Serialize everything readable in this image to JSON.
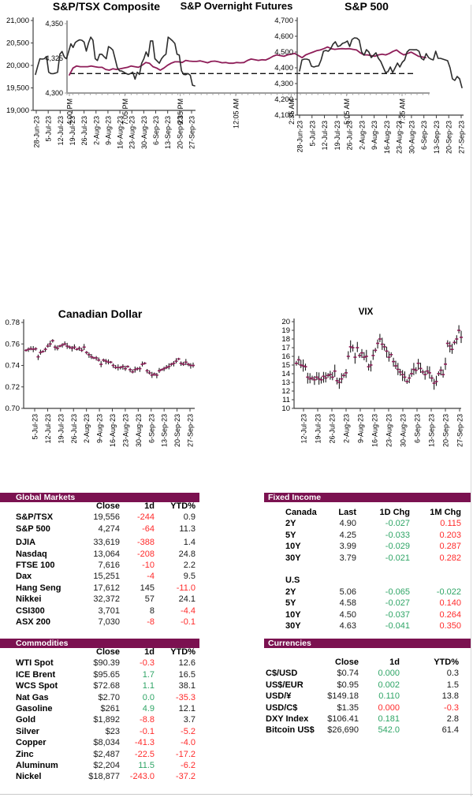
{
  "colors": {
    "accent": "#7B1150",
    "line": "#8E1D58",
    "red": "#FF2B2B",
    "green": "#2FA566",
    "axis_gray": "#9e9e9e",
    "axis_dark": "#3f3f3f"
  },
  "chart_data": [
    {
      "type": "line",
      "title": "S&P Overnight Futures",
      "ylim": [
        4300,
        4350
      ],
      "y_ticks": [
        "4,300",
        "4,325",
        "4,350"
      ],
      "x_ticks": [
        "4:00 PM",
        "7:05 PM",
        "9:35 PM",
        "12:05 AM",
        "2:35 AM",
        "5:05 AM",
        "7:35 AM"
      ],
      "ref_line": 4314,
      "values": [
        4313,
        4318,
        4319.5,
        4319,
        4319,
        4319,
        4319.5,
        4319,
        4318.5,
        4318.5,
        4317,
        4316.5,
        4317.5,
        4317,
        4317.5,
        4318,
        4318.5,
        4319.5,
        4319,
        4318.5,
        4320,
        4322,
        4321.5,
        4319,
        4318,
        4316.5,
        4318,
        4320,
        4321.5,
        4322.5,
        4322.5,
        4322,
        4323.5,
        4323,
        4322.8,
        4322.8,
        4323.2,
        4322.5,
        4321.8,
        4322.8,
        4323,
        4322.5,
        4321.8,
        4322,
        4321.5,
        4321.5,
        4322,
        4321.8,
        4322,
        4323.5,
        4324.5,
        4324,
        4323.5,
        4324,
        4323.8,
        4325,
        4326.5,
        4327.5,
        4327,
        4326.5,
        4327.5,
        4328,
        4328.5,
        4327,
        4325.5,
        4327.5,
        4328.5,
        4329.5,
        4330.5,
        4331,
        4332,
        4333.2,
        4332,
        4331.5,
        4331.8,
        4332,
        4331.8,
        4332,
        4331.5,
        4331,
        4329,
        4327.5,
        4327.5,
        4327,
        4326.5,
        4327.5,
        4328,
        4327.5,
        4328.5,
        4330,
        4331,
        4329,
        4327.5,
        4328.5,
        4329.5,
        4328,
        4326.5,
        4326,
        4325.5
      ]
    },
    {
      "type": "line",
      "title": "S&P/TSX Composite",
      "ylim": [
        19000,
        21000
      ],
      "y_ticks": [
        "19,000",
        "19,500",
        "20,000",
        "20,500",
        "21,000"
      ],
      "x_ticks": [
        "28-Jun-23",
        "5-Jul-23",
        "12-Jul-23",
        "19-Jul-23",
        "26-Jul-23",
        "2-Aug-23",
        "9-Aug-23",
        "16-Aug-23",
        "23-Aug-23",
        "30-Aug-23",
        "6-Sep-23",
        "13-Sep-23",
        "20-Sep-23",
        "27-Sep-23"
      ],
      "values": [
        19800,
        19980,
        20150,
        20140,
        20150,
        20200,
        19850,
        19820,
        19815,
        19830,
        19850,
        20250,
        20310,
        20190,
        20150,
        20310,
        20480,
        20400,
        20510,
        20545,
        20570,
        20560,
        20520,
        20320,
        20500,
        20630,
        20560,
        20150,
        20110,
        20250,
        20250,
        20195,
        20150,
        20420,
        20390,
        20340,
        20150,
        19950,
        19880,
        19875,
        19850,
        19820,
        19800,
        19820,
        19850,
        19695,
        19850,
        19800,
        20050,
        20150,
        20300,
        20200,
        20545,
        20545,
        20150,
        20100,
        20050,
        20150,
        20210,
        20250,
        20630,
        20590,
        20545,
        20490,
        20250,
        20230,
        19880,
        19800,
        19795,
        19820,
        19780,
        19560,
        19545
      ]
    },
    {
      "type": "line",
      "title": "S&P 500",
      "ylim": [
        4100,
        4700
      ],
      "y_ticks": [
        "4,100",
        "4,200",
        "4,300",
        "4,400",
        "4,500",
        "4,600",
        "4,700"
      ],
      "x_ticks": [
        "28-Jun-23",
        "5-Jul-23",
        "12-Jul-23",
        "19-Jul-23",
        "26-Jul-23",
        "2-Aug-23",
        "9-Aug-23",
        "16-Aug-23",
        "23-Aug-23",
        "30-Aug-23",
        "6-Sep-23",
        "13-Sep-23",
        "20-Sep-23",
        "27-Sep-23"
      ],
      "values": [
        4380,
        4450,
        4455,
        4455,
        4450,
        4410,
        4405,
        4410,
        4412,
        4450,
        4505,
        4510,
        4505,
        4520,
        4550,
        4565,
        4535,
        4540,
        4555,
        4560,
        4570,
        4535,
        4580,
        4590,
        4588,
        4575,
        4500,
        4480,
        4515,
        4500,
        4465,
        4480,
        4495,
        4460,
        4440,
        4405,
        4370,
        4375,
        4405,
        4370,
        4400,
        4430,
        4405,
        4435,
        4450,
        4500,
        4515,
        4515,
        4514,
        4515,
        4505,
        4460,
        4450,
        4490,
        4465,
        4455,
        4450,
        4505,
        4460,
        4460,
        4455,
        4450,
        4445,
        4400,
        4330,
        4320,
        4345,
        4330,
        4274
      ]
    },
    {
      "type": "hilo",
      "title": "Canadian Dollar",
      "ylim": [
        0.7,
        0.78
      ],
      "y_ticks": [
        "0.70",
        "0.72",
        "0.74",
        "0.76",
        "0.78"
      ],
      "x_ticks": [
        "5-Jul-23",
        "12-Jul-23",
        "19-Jul-23",
        "26-Jul-23",
        "2-Aug-23",
        "9-Aug-23",
        "16-Aug-23",
        "23-Aug-23",
        "30-Aug-23",
        "6-Sep-23",
        "13-Sep-23",
        "20-Sep-23",
        "27-Sep-23"
      ],
      "bar_range": 0.0022,
      "values": [
        0.754,
        0.755,
        0.7555,
        0.755,
        0.7555,
        0.748,
        0.752,
        0.753,
        0.755,
        0.758,
        0.76,
        0.763,
        0.757,
        0.756,
        0.758,
        0.759,
        0.76,
        0.758,
        0.757,
        0.756,
        0.757,
        0.755,
        0.756,
        0.754,
        0.757,
        0.752,
        0.75,
        0.748,
        0.747,
        0.747,
        0.745,
        0.741,
        0.745,
        0.744,
        0.743,
        0.743,
        0.74,
        0.738,
        0.738,
        0.738,
        0.739,
        0.737,
        0.739,
        0.736,
        0.734,
        0.736,
        0.737,
        0.737,
        0.741,
        0.742,
        0.735,
        0.733,
        0.731,
        0.732,
        0.731,
        0.735,
        0.736,
        0.737,
        0.738,
        0.739,
        0.741,
        0.742,
        0.744,
        0.746,
        0.742,
        0.741,
        0.743,
        0.741,
        0.74,
        0.74
      ]
    },
    {
      "type": "hilo",
      "title": "VIX",
      "ylim": [
        10,
        20
      ],
      "y_ticks": [
        "10",
        "11",
        "12",
        "13",
        "14",
        "15",
        "16",
        "17",
        "18",
        "19",
        "20"
      ],
      "x_ticks": [
        "12-Jul-23",
        "19-Jul-23",
        "26-Jul-23",
        "2-Aug-23",
        "9-Aug-23",
        "16-Aug-23",
        "23-Aug-23",
        "30-Aug-23",
        "6-Sep-23",
        "13-Sep-23",
        "20-Sep-23",
        "27-Sep-23"
      ],
      "bar_range": 0.55,
      "values": [
        15.2,
        15.6,
        15.0,
        14.9,
        14.8,
        13.6,
        13.4,
        13.5,
        13.3,
        13.6,
        13.4,
        13.3,
        13.7,
        13.5,
        13.8,
        13.9,
        13.6,
        14.3,
        13.2,
        13.0,
        13.4,
        13.8,
        14.1,
        16.0,
        17.1,
        17.0,
        15.9,
        17.0,
        16.1,
        16.4,
        15.9,
        16.0,
        14.8,
        15.0,
        16.1,
        16.7,
        17.5,
        18.0,
        17.4,
        17.1,
        16.6,
        15.9,
        16.2,
        15.4,
        14.9,
        14.5,
        14.2,
        13.9,
        13.6,
        13.1,
        13.5,
        14.0,
        14.5,
        14.4,
        15.2,
        14.6,
        14.2,
        13.9,
        14.3,
        14.1,
        13.5,
        12.9,
        13.1,
        14.0,
        14.4,
        13.9,
        15.1,
        17.5,
        17.2,
        16.8,
        17.6,
        18.0,
        19.0,
        18.2
      ]
    }
  ],
  "tables": {
    "global_markets": {
      "title": "Global Markets",
      "headers": [
        "Close",
        "1d",
        "YTD%"
      ],
      "rows": [
        {
          "label": "S&P/TSX",
          "cells": [
            [
              "19,556",
              "k"
            ],
            [
              "-244",
              "r"
            ],
            [
              "0.9",
              "k"
            ]
          ]
        },
        {
          "label": "S&P 500",
          "cells": [
            [
              "4,274",
              "k"
            ],
            [
              "-64",
              "r"
            ],
            [
              "11.3",
              "k"
            ]
          ]
        },
        {
          "label": "DJIA",
          "cells": [
            [
              "33,619",
              "k"
            ],
            [
              "-388",
              "r"
            ],
            [
              "1.4",
              "k"
            ]
          ]
        },
        {
          "label": "Nasdaq",
          "cells": [
            [
              "13,064",
              "k"
            ],
            [
              "-208",
              "r"
            ],
            [
              "24.8",
              "k"
            ]
          ]
        },
        {
          "label": "FTSE 100",
          "cells": [
            [
              "7,616",
              "k"
            ],
            [
              "-10",
              "r"
            ],
            [
              "2.2",
              "k"
            ]
          ]
        },
        {
          "label": "Dax",
          "cells": [
            [
              "15,251",
              "k"
            ],
            [
              "-4",
              "r"
            ],
            [
              "9.5",
              "k"
            ]
          ]
        },
        {
          "label": "Hang Seng",
          "cells": [
            [
              "17,612",
              "k"
            ],
            [
              "145",
              "k"
            ],
            [
              "-11.0",
              "r"
            ]
          ]
        },
        {
          "label": "Nikkei",
          "cells": [
            [
              "32,372",
              "k"
            ],
            [
              "57",
              "k"
            ],
            [
              "24.1",
              "k"
            ]
          ]
        },
        {
          "label": "CSI300",
          "cells": [
            [
              "3,701",
              "k"
            ],
            [
              "8",
              "k"
            ],
            [
              "-4.4",
              "r"
            ]
          ]
        },
        {
          "label": "ASX 200",
          "cells": [
            [
              "7,030",
              "k"
            ],
            [
              "-8",
              "r"
            ],
            [
              "-0.1",
              "r"
            ]
          ]
        }
      ]
    },
    "fixed_income": {
      "title": "Fixed Income",
      "headers": [
        "Canada",
        "Last",
        "1D Chg",
        "1M Chg"
      ],
      "us_label": "U.S",
      "canada_rows": [
        {
          "label": "2Y",
          "cells": [
            [
              "4.90",
              "k"
            ],
            [
              "-0.027",
              "g"
            ],
            [
              "0.115",
              "r"
            ]
          ]
        },
        {
          "label": "5Y",
          "cells": [
            [
              "4.25",
              "k"
            ],
            [
              "-0.033",
              "g"
            ],
            [
              "0.203",
              "r"
            ]
          ]
        },
        {
          "label": "10Y",
          "cells": [
            [
              "3.99",
              "k"
            ],
            [
              "-0.029",
              "g"
            ],
            [
              "0.287",
              "r"
            ]
          ]
        },
        {
          "label": "30Y",
          "cells": [
            [
              "3.79",
              "k"
            ],
            [
              "-0.021",
              "g"
            ],
            [
              "0.282",
              "r"
            ]
          ]
        }
      ],
      "us_rows": [
        {
          "label": "2Y",
          "cells": [
            [
              "5.06",
              "k"
            ],
            [
              "-0.065",
              "g"
            ],
            [
              "-0.022",
              "g"
            ]
          ]
        },
        {
          "label": "5Y",
          "cells": [
            [
              "4.58",
              "k"
            ],
            [
              "-0.027",
              "g"
            ],
            [
              "0.140",
              "r"
            ]
          ]
        },
        {
          "label": "10Y",
          "cells": [
            [
              "4.50",
              "k"
            ],
            [
              "-0.037",
              "g"
            ],
            [
              "0.264",
              "r"
            ]
          ]
        },
        {
          "label": "30Y",
          "cells": [
            [
              "4.63",
              "k"
            ],
            [
              "-0.041",
              "g"
            ],
            [
              "0.350",
              "r"
            ]
          ]
        }
      ]
    },
    "commodities": {
      "title": "Commodities",
      "headers": [
        "Close",
        "1d",
        "YTD%"
      ],
      "rows": [
        {
          "label": "WTI Spot",
          "cells": [
            [
              "$90.39",
              "k"
            ],
            [
              "-0.3",
              "r"
            ],
            [
              "12.6",
              "k"
            ]
          ]
        },
        {
          "label": "ICE Brent",
          "cells": [
            [
              "$95.65",
              "k"
            ],
            [
              "1.7",
              "g"
            ],
            [
              "16.5",
              "k"
            ]
          ]
        },
        {
          "label": "WCS Spot",
          "cells": [
            [
              "$72.68",
              "k"
            ],
            [
              "1.1",
              "g"
            ],
            [
              "38.1",
              "k"
            ]
          ]
        },
        {
          "label": "Nat Gas",
          "cells": [
            [
              "$2.70",
              "k"
            ],
            [
              "0.0",
              "g"
            ],
            [
              "-35.3",
              "r"
            ]
          ]
        },
        {
          "label": "Gasoline",
          "cells": [
            [
              "$261",
              "k"
            ],
            [
              "4.9",
              "g"
            ],
            [
              "12.1",
              "k"
            ]
          ]
        },
        {
          "label": "Gold",
          "cells": [
            [
              "$1,892",
              "k"
            ],
            [
              "-8.8",
              "r"
            ],
            [
              "3.7",
              "k"
            ]
          ]
        },
        {
          "label": "Silver",
          "cells": [
            [
              "$23",
              "k"
            ],
            [
              "-0.1",
              "r"
            ],
            [
              "-5.2",
              "r"
            ]
          ]
        },
        {
          "label": "Copper",
          "cells": [
            [
              "$8,034",
              "k"
            ],
            [
              "-41.3",
              "r"
            ],
            [
              "-4.0",
              "r"
            ]
          ]
        },
        {
          "label": "Zinc",
          "cells": [
            [
              "$2,487",
              "k"
            ],
            [
              "-22.5",
              "r"
            ],
            [
              "-17.2",
              "r"
            ]
          ]
        },
        {
          "label": "Aluminum",
          "cells": [
            [
              "$2,204",
              "k"
            ],
            [
              "11.5",
              "g"
            ],
            [
              "-6.2",
              "r"
            ]
          ]
        },
        {
          "label": "Nickel",
          "cells": [
            [
              "$18,877",
              "k"
            ],
            [
              "-243.0",
              "r"
            ],
            [
              "-37.2",
              "r"
            ]
          ]
        }
      ]
    },
    "currencies": {
      "title": "Currencies",
      "headers": [
        "Close",
        "1d",
        "YTD%"
      ],
      "rows": [
        {
          "label": "C$/USD",
          "cells": [
            [
              "$0.74",
              "k"
            ],
            [
              "0.000",
              "g"
            ],
            [
              "0.3",
              "k"
            ]
          ]
        },
        {
          "label": "US$/EUR",
          "cells": [
            [
              "$0.95",
              "k"
            ],
            [
              "0.002",
              "g"
            ],
            [
              "1.5",
              "k"
            ]
          ]
        },
        {
          "label": "USD/¥",
          "cells": [
            [
              "$149.18",
              "k"
            ],
            [
              "0.110",
              "g"
            ],
            [
              "13.8",
              "k"
            ]
          ]
        },
        {
          "label": "USD/C$",
          "cells": [
            [
              "$1.35",
              "k"
            ],
            [
              "0.000",
              "r"
            ],
            [
              "-0.3",
              "r"
            ]
          ]
        },
        {
          "label": "DXY Index",
          "cells": [
            [
              "$106.41",
              "k"
            ],
            [
              "0.181",
              "g"
            ],
            [
              "2.8",
              "k"
            ]
          ]
        },
        {
          "label": "Bitcoin US$",
          "cells": [
            [
              "$26,690",
              "k"
            ],
            [
              "542.0",
              "g"
            ],
            [
              "61.4",
              "k"
            ]
          ]
        }
      ]
    }
  }
}
